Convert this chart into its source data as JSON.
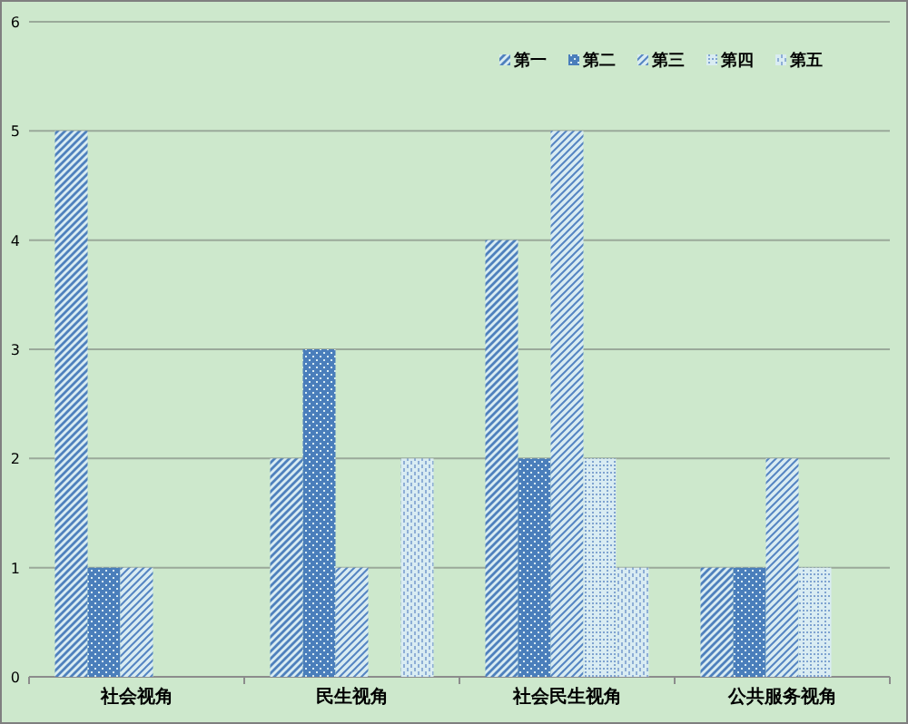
{
  "chart_data": {
    "type": "bar",
    "categories": [
      "社会视角",
      "民生视角",
      "社会民生视角",
      "公共服务视角"
    ],
    "series": [
      {
        "name": "第一",
        "color": "#4f81bd",
        "values": [
          5,
          2,
          4,
          1
        ]
      },
      {
        "name": "第二",
        "color": "#4a7ebb",
        "values": [
          1,
          3,
          2,
          1
        ]
      },
      {
        "name": "第三",
        "color": "#5585c2",
        "values": [
          1,
          1,
          5,
          2
        ]
      },
      {
        "name": "第四",
        "color": "#7fa3d0",
        "values": [
          0,
          0,
          2,
          1
        ]
      },
      {
        "name": "第五",
        "color": "#8eaed6",
        "values": [
          0,
          2,
          1,
          0
        ]
      }
    ],
    "ylim": [
      0,
      6
    ],
    "yticks": [
      0,
      1,
      2,
      3,
      4,
      5,
      6
    ],
    "grid": "y",
    "legend": "top right"
  }
}
